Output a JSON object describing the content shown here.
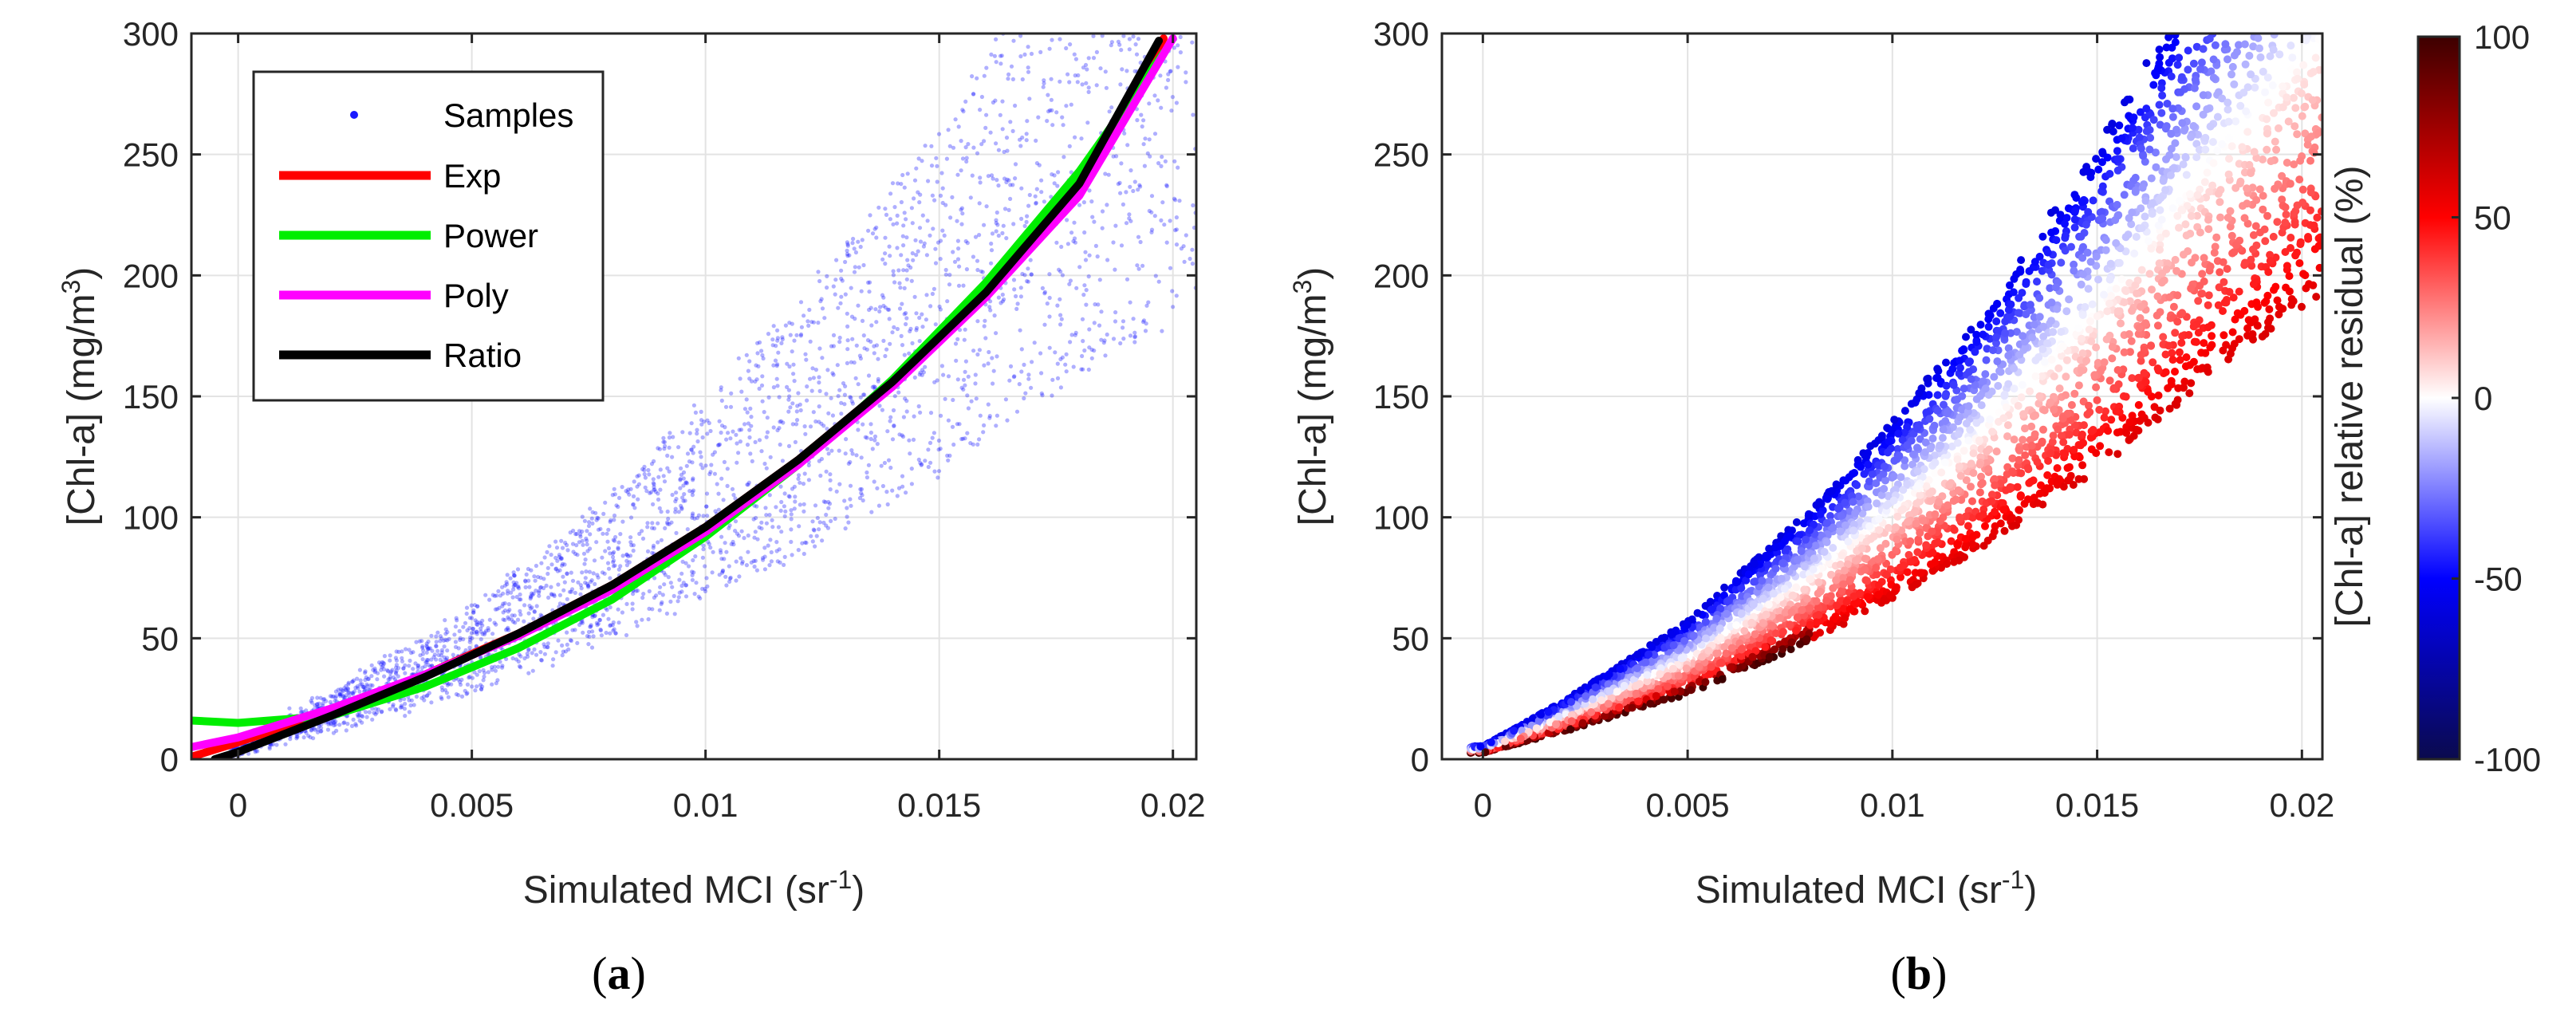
{
  "chart_data": [
    {
      "id": "a",
      "type": "scatter",
      "panel_label": "a",
      "xlabel": "Simulated MCI (sr",
      "xlabel_sup": "-1",
      "xlabel_end": ")",
      "ylabel": "[Chl-a] (mg/m",
      "ylabel_sup": "3",
      "ylabel_end": ")",
      "xlim": [
        -0.001,
        0.0205
      ],
      "ylim": [
        0,
        300
      ],
      "xticks": [
        0,
        0.005,
        0.01,
        0.015,
        0.02
      ],
      "xtick_labels": [
        "0",
        "0.005",
        "0.01",
        "0.015",
        "0.02"
      ],
      "yticks": [
        0,
        50,
        100,
        150,
        200,
        250,
        300
      ],
      "ytick_labels": [
        "0",
        "50",
        "100",
        "150",
        "200",
        "250",
        "300"
      ],
      "grid": true,
      "legend_position": "top-left",
      "legend": [
        "Samples",
        "Exp",
        "Power",
        "Poly",
        "Ratio"
      ],
      "samples": {
        "name": "Samples",
        "color": "#1a1aff",
        "band_center": [
          [
            0,
            5
          ],
          [
            0.002,
            20
          ],
          [
            0.005,
            45
          ],
          [
            0.008,
            80
          ],
          [
            0.01,
            108
          ],
          [
            0.012,
            138
          ],
          [
            0.015,
            190
          ],
          [
            0.018,
            255
          ],
          [
            0.0205,
            300
          ]
        ],
        "relative_spread": 0.38
      },
      "series": [
        {
          "name": "Exp",
          "color": "#ff0000",
          "x": [
            -0.001,
            0,
            0.002,
            0.004,
            0.006,
            0.008,
            0.01,
            0.012,
            0.014,
            0.016,
            0.018,
            0.0198
          ],
          "y": [
            1,
            7,
            20,
            35,
            52,
            72,
            96,
            124,
            156,
            193,
            238,
            298
          ]
        },
        {
          "name": "Power",
          "color": "#00ee00",
          "x": [
            -0.001,
            0,
            0.002,
            0.004,
            0.006,
            0.008,
            0.01,
            0.012,
            0.014,
            0.016,
            0.018,
            0.0198
          ],
          "y": [
            16,
            15,
            18,
            30,
            46,
            66,
            92,
            122,
            157,
            197,
            243,
            292
          ]
        },
        {
          "name": "Poly",
          "color": "#ff00ff",
          "x": [
            -0.001,
            0,
            0.002,
            0.004,
            0.006,
            0.008,
            0.01,
            0.012,
            0.014,
            0.016,
            0.018,
            0.02
          ],
          "y": [
            5,
            9,
            21,
            35,
            51,
            70,
            94,
            122,
            154,
            191,
            233,
            298
          ]
        },
        {
          "name": "Ratio",
          "color": "#000000",
          "x": [
            -0.0005,
            0,
            0.002,
            0.004,
            0.006,
            0.008,
            0.01,
            0.012,
            0.014,
            0.016,
            0.018,
            0.0197
          ],
          "y": [
            0,
            3,
            18,
            34,
            52,
            72,
            96,
            124,
            156,
            193,
            238,
            297
          ]
        }
      ]
    },
    {
      "id": "b",
      "type": "scatter",
      "panel_label": "b",
      "xlabel": "Simulated MCI (sr",
      "xlabel_sup": "-1",
      "xlabel_end": ")",
      "ylabel": "[Chl-a] (mg/m",
      "ylabel_sup": "3",
      "ylabel_end": ")",
      "xlim": [
        -0.001,
        0.0205
      ],
      "ylim": [
        0,
        300
      ],
      "xticks": [
        0,
        0.005,
        0.01,
        0.015,
        0.02
      ],
      "xtick_labels": [
        "0",
        "0.005",
        "0.01",
        "0.015",
        "0.02"
      ],
      "yticks": [
        0,
        50,
        100,
        150,
        200,
        250,
        300
      ],
      "ytick_labels": [
        "0",
        "50",
        "100",
        "150",
        "200",
        "250",
        "300"
      ],
      "grid": true,
      "band_center": [
        [
          0,
          4
        ],
        [
          0.002,
          18
        ],
        [
          0.005,
          42
        ],
        [
          0.008,
          76
        ],
        [
          0.01,
          103
        ],
        [
          0.012,
          133
        ],
        [
          0.015,
          186
        ],
        [
          0.018,
          252
        ],
        [
          0.0205,
          300
        ]
      ],
      "relative_spread": 0.36,
      "colorbar": {
        "label": "[Chl-a] relative residual (%)",
        "range": [
          -100,
          100
        ],
        "ticks": [
          -100,
          -50,
          0,
          50,
          100
        ],
        "tick_labels": [
          "-100",
          "-50",
          "0",
          "50",
          "100"
        ],
        "colors": [
          "#0a0a4d",
          "#0000ff",
          "#ffffff",
          "#ff0000",
          "#3d0000"
        ]
      }
    }
  ]
}
